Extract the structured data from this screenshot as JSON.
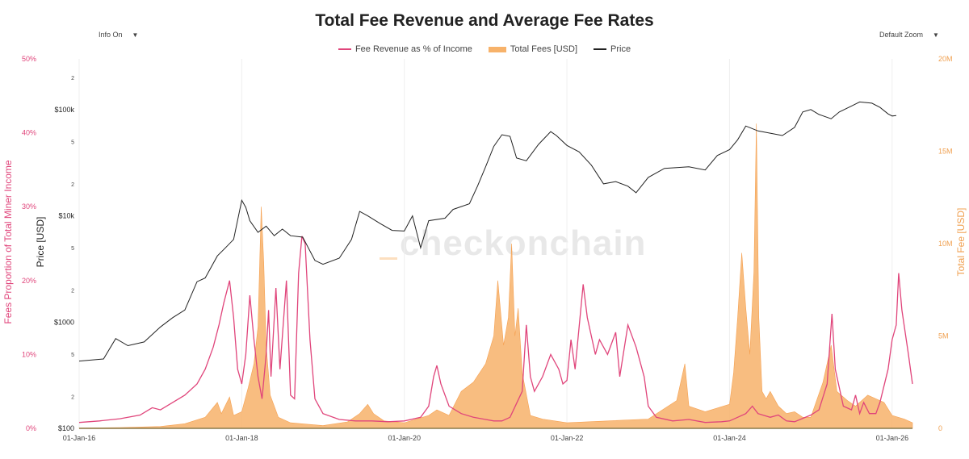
{
  "header": {
    "title": "Total Fee Revenue and Average Fee Rates"
  },
  "controls": {
    "info_label": "Info On",
    "zoom_label": "Default Zoom",
    "caret": "▼"
  },
  "legend": [
    {
      "label": "Fee Revenue as % of Income",
      "color": "#e0457b"
    },
    {
      "label": "Total Fees [USD]",
      "color": "#f7b26a"
    },
    {
      "label": "Price",
      "color": "#222222"
    }
  ],
  "watermark": "checkonchain",
  "axes": {
    "left_pct_title": "Fees Proportion of Total Miner Income",
    "price_title": "Price [USD]",
    "right_title": "Total Fee [USD]",
    "left_pct_ticks": [
      "0%",
      "10%",
      "20%",
      "30%",
      "40%",
      "50%"
    ],
    "price_ticks": [
      "$100",
      "$1000",
      "$10k",
      "$100k"
    ],
    "price_minor_ticks": [
      "2",
      "5"
    ],
    "right_ticks": [
      "0",
      "5M",
      "10M",
      "15M",
      "20M"
    ],
    "x_ticks": [
      "01-Jan-16",
      "01-Jan-18",
      "01-Jan-20",
      "01-Jan-22",
      "01-Jan-24",
      "01-Jan-26"
    ]
  },
  "chart_data": {
    "type": "line",
    "title": "Total Fee Revenue and Average Fee Rates",
    "xlabel": "",
    "x_range": [
      2016.0,
      2026.25
    ],
    "series": [
      {
        "name": "Fee Revenue as % of Income",
        "axis": "left",
        "unit": "%",
        "ylim": [
          0,
          50
        ],
        "points": [
          [
            2016.0,
            0.8
          ],
          [
            2016.25,
            1.0
          ],
          [
            2016.5,
            1.3
          ],
          [
            2016.75,
            1.8
          ],
          [
            2016.9,
            2.8
          ],
          [
            2017.0,
            2.5
          ],
          [
            2017.15,
            3.5
          ],
          [
            2017.3,
            4.5
          ],
          [
            2017.45,
            6.0
          ],
          [
            2017.55,
            8.0
          ],
          [
            2017.65,
            11.0
          ],
          [
            2017.72,
            14.0
          ],
          [
            2017.78,
            17.0
          ],
          [
            2017.85,
            20.0
          ],
          [
            2017.9,
            15.0
          ],
          [
            2017.95,
            8.0
          ],
          [
            2018.0,
            6.0
          ],
          [
            2018.05,
            10.0
          ],
          [
            2018.1,
            18.0
          ],
          [
            2018.15,
            12.0
          ],
          [
            2018.2,
            7.0
          ],
          [
            2018.25,
            4.0
          ],
          [
            2018.3,
            10.0
          ],
          [
            2018.33,
            16.0
          ],
          [
            2018.36,
            7.0
          ],
          [
            2018.42,
            19.0
          ],
          [
            2018.47,
            8.0
          ],
          [
            2018.55,
            20.0
          ],
          [
            2018.6,
            4.5
          ],
          [
            2018.65,
            4.0
          ],
          [
            2018.7,
            21.0
          ],
          [
            2018.74,
            26.0
          ],
          [
            2018.78,
            25.0
          ],
          [
            2018.84,
            12.0
          ],
          [
            2018.9,
            4.0
          ],
          [
            2019.0,
            2.0
          ],
          [
            2019.2,
            1.2
          ],
          [
            2019.4,
            1.0
          ],
          [
            2019.6,
            1.0
          ],
          [
            2019.8,
            0.9
          ],
          [
            2020.0,
            1.0
          ],
          [
            2020.2,
            1.5
          ],
          [
            2020.3,
            3.0
          ],
          [
            2020.36,
            7.0
          ],
          [
            2020.4,
            8.5
          ],
          [
            2020.45,
            6.0
          ],
          [
            2020.55,
            3.0
          ],
          [
            2020.7,
            2.0
          ],
          [
            2020.85,
            1.5
          ],
          [
            2021.0,
            1.2
          ],
          [
            2021.1,
            1.0
          ],
          [
            2021.2,
            1.0
          ],
          [
            2021.3,
            1.5
          ],
          [
            2021.45,
            5.0
          ],
          [
            2021.5,
            14.0
          ],
          [
            2021.55,
            7.0
          ],
          [
            2021.6,
            5.0
          ],
          [
            2021.7,
            7.0
          ],
          [
            2021.8,
            10.0
          ],
          [
            2021.9,
            8.0
          ],
          [
            2021.95,
            6.0
          ],
          [
            2022.0,
            6.5
          ],
          [
            2022.05,
            12.0
          ],
          [
            2022.1,
            8.0
          ],
          [
            2022.2,
            19.5
          ],
          [
            2022.25,
            15.0
          ],
          [
            2022.35,
            10.0
          ],
          [
            2022.4,
            12.0
          ],
          [
            2022.5,
            10.0
          ],
          [
            2022.6,
            13.0
          ],
          [
            2022.65,
            7.0
          ],
          [
            2022.75,
            14.0
          ],
          [
            2022.85,
            11.0
          ],
          [
            2022.95,
            7.0
          ],
          [
            2023.0,
            3.0
          ],
          [
            2023.1,
            1.5
          ],
          [
            2023.3,
            1.0
          ],
          [
            2023.5,
            1.2
          ],
          [
            2023.7,
            0.8
          ],
          [
            2023.9,
            0.9
          ],
          [
            2024.0,
            1.0
          ],
          [
            2024.1,
            1.5
          ],
          [
            2024.2,
            2.0
          ],
          [
            2024.28,
            3.0
          ],
          [
            2024.35,
            2.0
          ],
          [
            2024.5,
            1.5
          ],
          [
            2024.6,
            1.8
          ],
          [
            2024.7,
            1.0
          ],
          [
            2024.8,
            0.9
          ],
          [
            2025.0,
            1.8
          ],
          [
            2025.1,
            2.5
          ],
          [
            2025.2,
            6.0
          ],
          [
            2025.26,
            15.5
          ],
          [
            2025.3,
            8.0
          ],
          [
            2025.4,
            3.0
          ],
          [
            2025.5,
            2.5
          ],
          [
            2025.55,
            4.5
          ],
          [
            2025.6,
            2.0
          ],
          [
            2025.65,
            3.5
          ],
          [
            2025.72,
            2.0
          ],
          [
            2025.8,
            2.0
          ],
          [
            2025.85,
            3.5
          ],
          [
            2025.95,
            8.0
          ],
          [
            2026.0,
            12.0
          ],
          [
            2026.05,
            14.0
          ],
          [
            2026.08,
            21.0
          ],
          [
            2026.12,
            16.0
          ],
          [
            2026.2,
            10.0
          ],
          [
            2026.25,
            6.0
          ]
        ]
      },
      {
        "name": "Total Fees [USD]",
        "axis": "right",
        "unit": "USD",
        "ylim": [
          0,
          20000000
        ],
        "points": [
          [
            2016.0,
            20000
          ],
          [
            2016.5,
            40000
          ],
          [
            2017.0,
            100000
          ],
          [
            2017.3,
            250000
          ],
          [
            2017.55,
            600000
          ],
          [
            2017.7,
            1400000
          ],
          [
            2017.75,
            800000
          ],
          [
            2017.85,
            1700000
          ],
          [
            2017.9,
            700000
          ],
          [
            2018.0,
            900000
          ],
          [
            2018.08,
            2200000
          ],
          [
            2018.15,
            3500000
          ],
          [
            2018.2,
            5500000
          ],
          [
            2018.24,
            12000000
          ],
          [
            2018.27,
            9000000
          ],
          [
            2018.3,
            4500000
          ],
          [
            2018.35,
            1800000
          ],
          [
            2018.45,
            600000
          ],
          [
            2018.6,
            300000
          ],
          [
            2019.0,
            150000
          ],
          [
            2019.3,
            350000
          ],
          [
            2019.45,
            800000
          ],
          [
            2019.55,
            1300000
          ],
          [
            2019.62,
            800000
          ],
          [
            2019.75,
            400000
          ],
          [
            2020.0,
            300000
          ],
          [
            2020.3,
            700000
          ],
          [
            2020.4,
            1000000
          ],
          [
            2020.55,
            700000
          ],
          [
            2020.7,
            2000000
          ],
          [
            2020.85,
            2500000
          ],
          [
            2021.0,
            3500000
          ],
          [
            2021.1,
            5000000
          ],
          [
            2021.15,
            8000000
          ],
          [
            2021.22,
            4500000
          ],
          [
            2021.28,
            6000000
          ],
          [
            2021.32,
            10000000
          ],
          [
            2021.36,
            5000000
          ],
          [
            2021.4,
            6500000
          ],
          [
            2021.45,
            3000000
          ],
          [
            2021.55,
            700000
          ],
          [
            2021.7,
            500000
          ],
          [
            2022.0,
            300000
          ],
          [
            2022.5,
            400000
          ],
          [
            2023.0,
            500000
          ],
          [
            2023.35,
            1500000
          ],
          [
            2023.45,
            3500000
          ],
          [
            2023.5,
            1200000
          ],
          [
            2023.7,
            900000
          ],
          [
            2024.0,
            1300000
          ],
          [
            2024.05,
            3000000
          ],
          [
            2024.1,
            6000000
          ],
          [
            2024.15,
            9500000
          ],
          [
            2024.2,
            6500000
          ],
          [
            2024.25,
            4000000
          ],
          [
            2024.3,
            8500000
          ],
          [
            2024.33,
            16500000
          ],
          [
            2024.36,
            6000000
          ],
          [
            2024.4,
            2000000
          ],
          [
            2024.45,
            1600000
          ],
          [
            2024.5,
            2000000
          ],
          [
            2024.6,
            1200000
          ],
          [
            2024.7,
            800000
          ],
          [
            2024.8,
            900000
          ],
          [
            2024.9,
            600000
          ],
          [
            2025.0,
            600000
          ],
          [
            2025.15,
            2500000
          ],
          [
            2025.25,
            4500000
          ],
          [
            2025.32,
            2000000
          ],
          [
            2025.45,
            1500000
          ],
          [
            2025.55,
            1200000
          ],
          [
            2025.7,
            1800000
          ],
          [
            2025.8,
            1600000
          ],
          [
            2025.9,
            1400000
          ],
          [
            2026.0,
            700000
          ],
          [
            2026.15,
            500000
          ],
          [
            2026.25,
            300000
          ]
        ]
      },
      {
        "name": "Price",
        "axis": "price",
        "unit": "USD",
        "scale": "log",
        "ylim": [
          100,
          300000
        ],
        "points": [
          [
            2016.0,
            430
          ],
          [
            2016.3,
            450
          ],
          [
            2016.45,
            700
          ],
          [
            2016.6,
            600
          ],
          [
            2016.8,
            650
          ],
          [
            2017.0,
            900
          ],
          [
            2017.15,
            1100
          ],
          [
            2017.3,
            1300
          ],
          [
            2017.45,
            2400
          ],
          [
            2017.55,
            2600
          ],
          [
            2017.7,
            4200
          ],
          [
            2017.8,
            5000
          ],
          [
            2017.9,
            6000
          ],
          [
            2018.0,
            14000
          ],
          [
            2018.05,
            12000
          ],
          [
            2018.1,
            9000
          ],
          [
            2018.2,
            7000
          ],
          [
            2018.3,
            8000
          ],
          [
            2018.4,
            6500
          ],
          [
            2018.5,
            7500
          ],
          [
            2018.6,
            6500
          ],
          [
            2018.75,
            6300
          ],
          [
            2018.9,
            3800
          ],
          [
            2019.0,
            3500
          ],
          [
            2019.2,
            4000
          ],
          [
            2019.35,
            6000
          ],
          [
            2019.45,
            11000
          ],
          [
            2019.55,
            10000
          ],
          [
            2019.7,
            8500
          ],
          [
            2019.85,
            7300
          ],
          [
            2020.0,
            7200
          ],
          [
            2020.1,
            10000
          ],
          [
            2020.2,
            5000
          ],
          [
            2020.3,
            9000
          ],
          [
            2020.5,
            9500
          ],
          [
            2020.6,
            11500
          ],
          [
            2020.8,
            13000
          ],
          [
            2020.9,
            19000
          ],
          [
            2021.0,
            29000
          ],
          [
            2021.1,
            45000
          ],
          [
            2021.2,
            58000
          ],
          [
            2021.3,
            56000
          ],
          [
            2021.38,
            35000
          ],
          [
            2021.5,
            33000
          ],
          [
            2021.65,
            47000
          ],
          [
            2021.8,
            62000
          ],
          [
            2021.87,
            57000
          ],
          [
            2022.0,
            46000
          ],
          [
            2022.15,
            40000
          ],
          [
            2022.3,
            30000
          ],
          [
            2022.45,
            20000
          ],
          [
            2022.6,
            21000
          ],
          [
            2022.75,
            19000
          ],
          [
            2022.85,
            16500
          ],
          [
            2023.0,
            23000
          ],
          [
            2023.2,
            28000
          ],
          [
            2023.5,
            29000
          ],
          [
            2023.7,
            27000
          ],
          [
            2023.85,
            37000
          ],
          [
            2024.0,
            42000
          ],
          [
            2024.1,
            52000
          ],
          [
            2024.2,
            70000
          ],
          [
            2024.35,
            63000
          ],
          [
            2024.5,
            60000
          ],
          [
            2024.65,
            57000
          ],
          [
            2024.8,
            68000
          ],
          [
            2024.9,
            95000
          ],
          [
            2025.0,
            100000
          ],
          [
            2025.1,
            90000
          ],
          [
            2025.25,
            82000
          ],
          [
            2025.35,
            95000
          ],
          [
            2025.5,
            108000
          ],
          [
            2025.6,
            118000
          ],
          [
            2025.75,
            115000
          ],
          [
            2025.85,
            105000
          ],
          [
            2025.95,
            91000
          ],
          [
            2026.0,
            87000
          ],
          [
            2026.05,
            88000
          ]
        ]
      }
    ]
  }
}
